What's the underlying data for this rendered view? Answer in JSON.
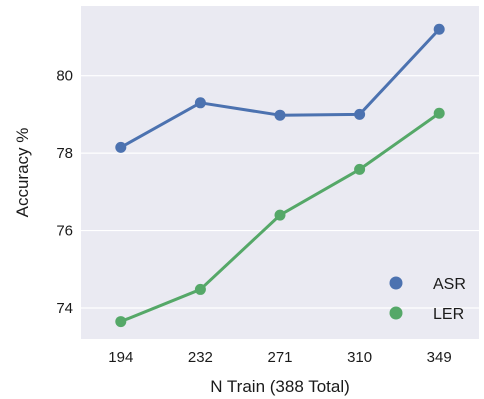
{
  "chart_data": {
    "type": "line",
    "xlabel": "N Train (388 Total)",
    "ylabel": "Accuracy %",
    "categories": [
      "194",
      "232",
      "271",
      "310",
      "349"
    ],
    "series": [
      {
        "name": "ASR",
        "color": "#4c72b0",
        "values": [
          78.15,
          79.3,
          78.98,
          79.0,
          81.2
        ]
      },
      {
        "name": "LER",
        "color": "#55a868",
        "values": [
          73.65,
          74.48,
          76.4,
          77.58,
          79.03
        ]
      }
    ],
    "ylim": [
      73.2,
      81.8
    ],
    "yticks": [
      74,
      76,
      78,
      80
    ],
    "grid": true,
    "legend_position": "bottom-right",
    "background": "#eaeaf2"
  }
}
